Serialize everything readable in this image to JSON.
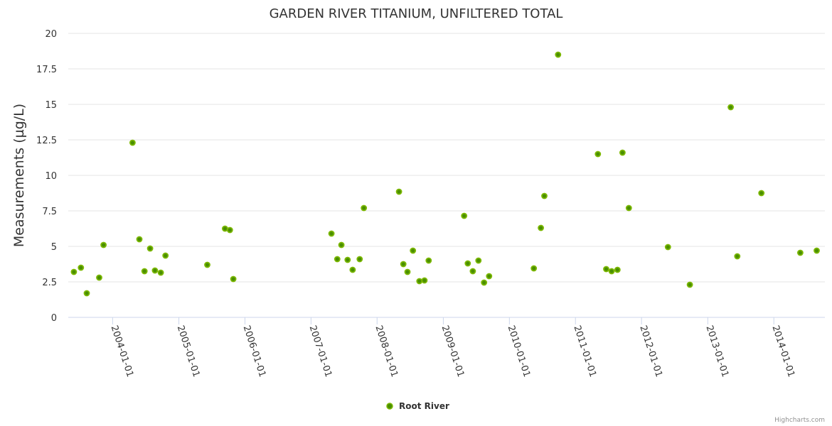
{
  "chart_data": {
    "type": "scatter",
    "title": "GARDEN RIVER TITANIUM, UNFILTERED TOTAL",
    "xlabel": "",
    "ylabel": "Measurements (µg/L)",
    "xlim": [
      "2003-05-01",
      "2014-10-10"
    ],
    "ylim": [
      0,
      20
    ],
    "yticks": [
      0,
      2.5,
      5,
      7.5,
      10,
      12.5,
      15,
      17.5,
      20
    ],
    "ytick_labels": [
      "0",
      "2.5",
      "5",
      "7.5",
      "10",
      "12.5",
      "15",
      "17.5",
      "20"
    ],
    "xticks": [
      "2004-01-01",
      "2005-01-01",
      "2006-01-01",
      "2007-01-01",
      "2008-01-01",
      "2009-01-01",
      "2010-01-01",
      "2011-01-01",
      "2012-01-01",
      "2013-01-01",
      "2014-01-01"
    ],
    "grid": true,
    "legend_position": "bottom-center",
    "series": [
      {
        "name": "Root River",
        "color": "#7cb800",
        "points": [
          [
            "2003-06-01",
            3.2
          ],
          [
            "2003-07-10",
            3.5
          ],
          [
            "2003-08-11",
            1.7
          ],
          [
            "2003-10-19",
            2.8
          ],
          [
            "2003-11-12",
            5.1
          ],
          [
            "2004-04-20",
            12.3
          ],
          [
            "2004-05-28",
            5.5
          ],
          [
            "2004-06-25",
            3.25
          ],
          [
            "2004-07-26",
            4.85
          ],
          [
            "2004-08-22",
            3.3
          ],
          [
            "2004-09-23",
            3.15
          ],
          [
            "2004-10-19",
            4.35
          ],
          [
            "2005-06-07",
            3.7
          ],
          [
            "2005-09-13",
            6.25
          ],
          [
            "2005-10-10",
            6.15
          ],
          [
            "2005-10-29",
            2.7
          ],
          [
            "2007-04-24",
            5.9
          ],
          [
            "2007-05-26",
            4.1
          ],
          [
            "2007-06-18",
            5.1
          ],
          [
            "2007-07-22",
            4.05
          ],
          [
            "2007-08-19",
            3.35
          ],
          [
            "2007-09-27",
            4.1
          ],
          [
            "2007-10-20",
            7.7
          ],
          [
            "2008-05-01",
            8.85
          ],
          [
            "2008-05-25",
            3.75
          ],
          [
            "2008-06-17",
            3.2
          ],
          [
            "2008-07-17",
            4.7
          ],
          [
            "2008-08-22",
            2.55
          ],
          [
            "2008-09-19",
            2.6
          ],
          [
            "2008-10-12",
            4.0
          ],
          [
            "2009-04-26",
            7.15
          ],
          [
            "2009-05-16",
            3.8
          ],
          [
            "2009-06-13",
            3.25
          ],
          [
            "2009-07-14",
            4.0
          ],
          [
            "2009-08-14",
            2.45
          ],
          [
            "2009-09-11",
            2.9
          ],
          [
            "2010-05-16",
            3.45
          ],
          [
            "2010-06-24",
            6.3
          ],
          [
            "2010-07-13",
            8.55
          ],
          [
            "2010-09-27",
            18.5
          ],
          [
            "2011-05-05",
            11.5
          ],
          [
            "2011-06-20",
            3.4
          ],
          [
            "2011-07-20",
            3.25
          ],
          [
            "2011-08-21",
            3.35
          ],
          [
            "2011-09-18",
            11.6
          ],
          [
            "2011-10-23",
            7.7
          ],
          [
            "2012-05-26",
            4.95
          ],
          [
            "2012-09-24",
            2.3
          ],
          [
            "2013-05-08",
            14.8
          ],
          [
            "2013-06-13",
            4.3
          ],
          [
            "2013-10-24",
            8.75
          ],
          [
            "2014-05-27",
            4.55
          ],
          [
            "2014-08-26",
            4.7
          ]
        ]
      }
    ]
  },
  "credits": "Highcharts.com"
}
